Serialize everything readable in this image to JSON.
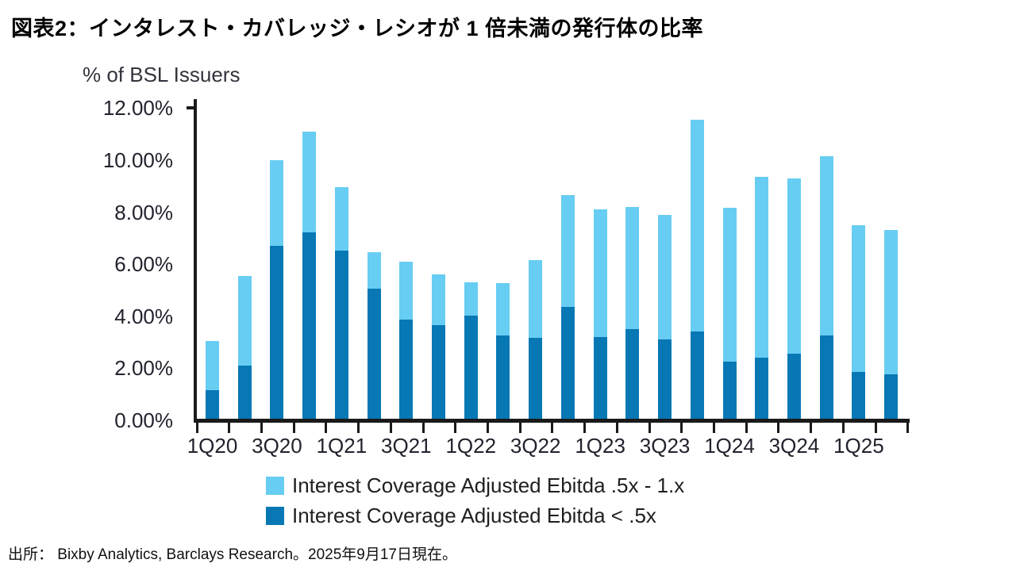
{
  "header": {
    "title": "図表2：インタレスト・カバレッジ・レシオが 1 倍未満の発行体の比率"
  },
  "chart_data": {
    "type": "bar",
    "stacked": true,
    "axis_title": "% of BSL Issuers",
    "ylim": [
      0,
      12
    ],
    "grid": false,
    "legend_position": "bottom-center",
    "y_tick_labels": [
      "12.00%",
      "10.00%",
      "8.00%",
      "6.00%",
      "4.00%",
      "2.00%",
      "0.00%"
    ],
    "x_tick_labels": [
      "1Q20",
      "3Q20",
      "1Q21",
      "3Q21",
      "1Q22",
      "3Q22",
      "1Q23",
      "3Q23",
      "1Q24",
      "3Q24",
      "1Q25"
    ],
    "categories": [
      "1Q20",
      "2Q20",
      "3Q20",
      "4Q20",
      "1Q21",
      "2Q21",
      "3Q21",
      "4Q21",
      "1Q22",
      "2Q22",
      "3Q22",
      "4Q22",
      "1Q23",
      "2Q23",
      "3Q23",
      "4Q23",
      "1Q24",
      "2Q24",
      "3Q24",
      "4Q24",
      "1Q25",
      "2Q25"
    ],
    "series": [
      {
        "name": "Interest Coverage Adjusted Ebitda .5x - 1.x",
        "color": "#68CDF2",
        "stack": "top",
        "values": [
          1.9,
          3.45,
          3.3,
          3.9,
          2.45,
          1.4,
          2.25,
          1.95,
          1.3,
          2.0,
          3.0,
          4.3,
          4.9,
          4.7,
          4.8,
          8.15,
          5.9,
          6.95,
          6.75,
          6.9,
          5.65,
          5.55
        ]
      },
      {
        "name": "Interest Coverage Adjusted Ebitda < .5x",
        "color": "#0778B4",
        "stack": "bottom",
        "values": [
          1.1,
          2.05,
          6.65,
          7.15,
          6.45,
          5.0,
          3.8,
          3.6,
          3.95,
          3.2,
          3.1,
          4.3,
          3.15,
          3.45,
          3.05,
          3.35,
          2.2,
          2.35,
          2.5,
          3.2,
          1.8,
          1.7
        ]
      }
    ]
  },
  "footer": {
    "source_line": "出所： Bixby Analytics, Barclays Research。2025年9月17日現在。"
  }
}
